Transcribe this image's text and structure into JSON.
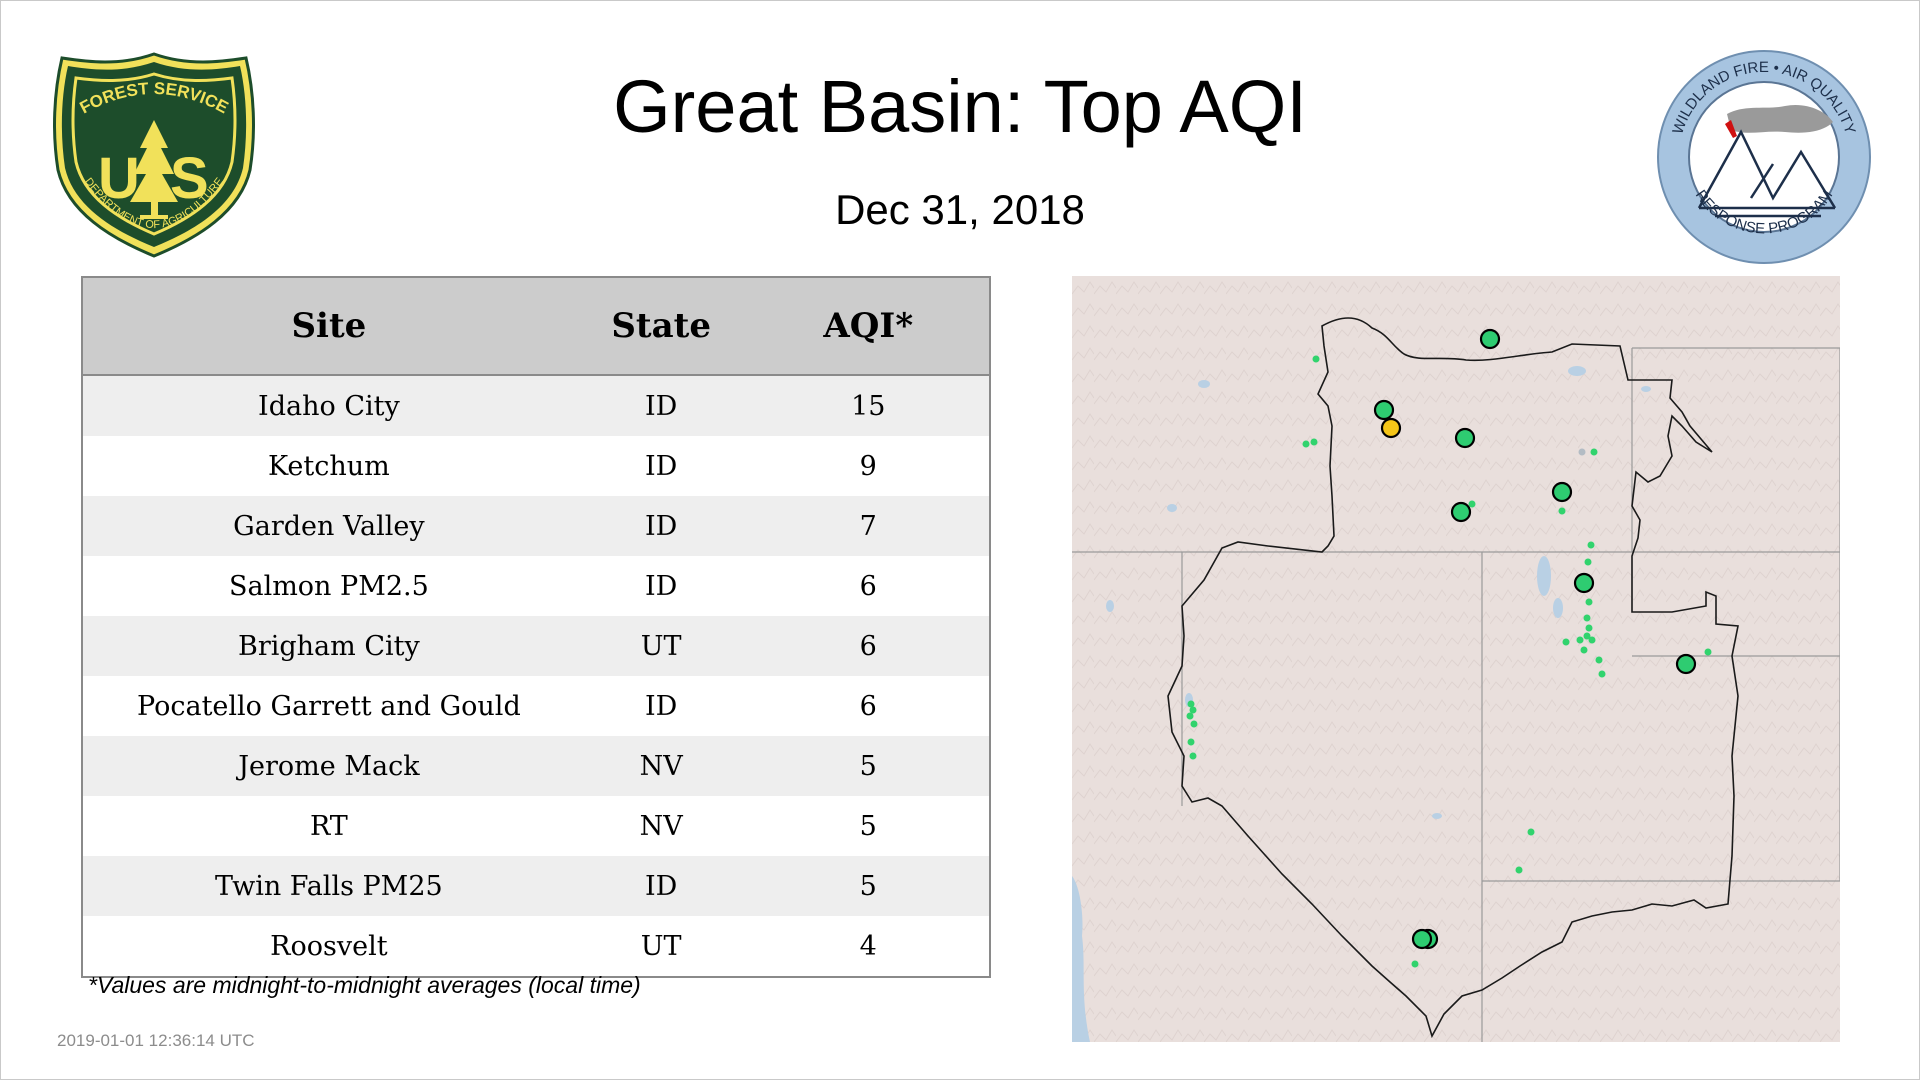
{
  "header": {
    "title": "Great Basin: Top AQI",
    "date": "Dec 31, 2018"
  },
  "logos": {
    "usfs": {
      "icon": "us-forest-service-shield-icon",
      "arc_text": "FOREST SERVICE",
      "letters_left": "U",
      "letters_right": "S",
      "bottom_text": "DEPARTMENT OF AGRICULTURE",
      "colors": {
        "shield": "#1d4d2b",
        "gold": "#f1e15a"
      }
    },
    "wfaq": {
      "icon": "wildland-fire-air-quality-logo-icon",
      "top_text": "WILDLAND FIRE • AIR QUALITY",
      "bottom_text": "RESPONSE PROGRAM",
      "colors": {
        "ring": "#a7c4e0",
        "smoke": "#9a9a9a",
        "flame": "#d01010"
      }
    }
  },
  "table": {
    "headers": {
      "site": "Site",
      "state": "State",
      "aqi": "AQI*"
    },
    "rows": [
      {
        "site": "Idaho City",
        "state": "ID",
        "aqi": "15"
      },
      {
        "site": "Ketchum",
        "state": "ID",
        "aqi": "9"
      },
      {
        "site": "Garden Valley",
        "state": "ID",
        "aqi": "7"
      },
      {
        "site": "Salmon PM2.5",
        "state": "ID",
        "aqi": "6"
      },
      {
        "site": "Brigham City",
        "state": "UT",
        "aqi": "6"
      },
      {
        "site": "Pocatello Garrett and Gould",
        "state": "ID",
        "aqi": "6"
      },
      {
        "site": "Jerome Mack",
        "state": "NV",
        "aqi": "5"
      },
      {
        "site": "RT",
        "state": "NV",
        "aqi": "5"
      },
      {
        "site": "Twin Falls PM25",
        "state": "ID",
        "aqi": "5"
      },
      {
        "site": "Roosvelt",
        "state": "UT",
        "aqi": "4"
      }
    ]
  },
  "footnote": "*Values are midnight-to-midnight averages (local time)",
  "timestamp": "2019-01-01 12:36:14 UTC",
  "map": {
    "region": "Great Basin",
    "colors": {
      "land": "#e9dfdc",
      "water": "#b9d0e4",
      "boundary": "#1a1a1a",
      "state_lines": "#9a9a9a",
      "aqi_good": "#2ecc71",
      "aqi_moderate": "#f5c518",
      "monitor_small": "#31d36d",
      "monitor_nodata": "#b3bcc4"
    }
  }
}
